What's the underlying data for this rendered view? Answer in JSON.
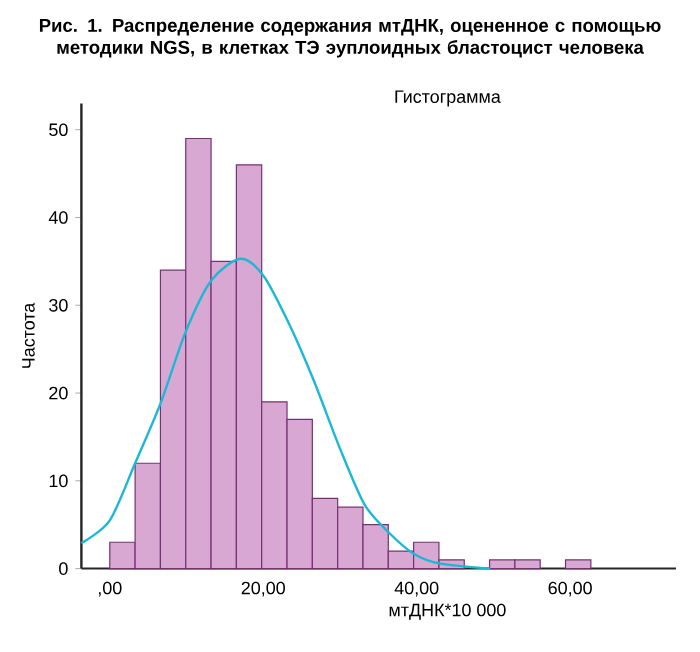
{
  "chart_data": {
    "type": "histogram",
    "title": "Рис. 1. Распределение содержания мтДНК, оцененное с помощью методики NGS, в клетках ТЭ эуплоидных бластоцист человека",
    "subtitle": "Гистограмма",
    "xlabel": "мтДНК*10 000",
    "ylabel": "Частота",
    "bins": [
      0,
      3.3,
      6.6,
      9.9,
      13.2,
      16.5,
      19.8,
      23.1,
      26.4,
      29.7,
      33,
      36.3,
      39.6,
      42.9,
      46.2,
      49.5,
      52.8,
      56.1,
      59.4,
      62.7
    ],
    "values": [
      3,
      12,
      34,
      49,
      35,
      46,
      19,
      17,
      8,
      7,
      5,
      2,
      3,
      1,
      0,
      1,
      1,
      0,
      1
    ],
    "color": "#d8a8d2",
    "series": [
      {
        "type": "line",
        "color": "#1bb8d6",
        "x": [
          -3.7,
          0,
          3.3,
          6.6,
          9.9,
          13.2,
          17,
          20,
          23.3,
          26.6,
          29.9,
          33.2,
          36.5,
          39.6,
          42.9,
          49.6
        ],
        "values": [
          2.9,
          5.5,
          12,
          18.8,
          27,
          32.8,
          35.3,
          33.4,
          28,
          21.4,
          13.9,
          7.3,
          4,
          1.7,
          0.6,
          0
        ]
      }
    ],
    "xlim": [
      -3.7,
      73.8
    ],
    "ylim": [
      0,
      53
    ],
    "xticks": [
      {
        "value": 0,
        "label": ",00"
      },
      {
        "value": 20,
        "label": "20,00"
      },
      {
        "value": 40,
        "label": "40,00"
      },
      {
        "value": 60,
        "label": "60,00"
      }
    ],
    "yticks": [
      0,
      10,
      20,
      30,
      40,
      50
    ]
  }
}
